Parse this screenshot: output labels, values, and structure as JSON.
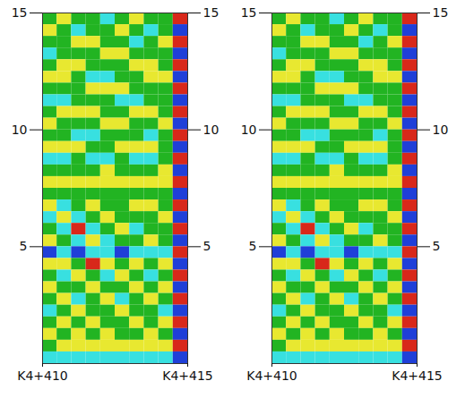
{
  "chart_data": [
    {
      "type": "heatmap",
      "xlim": [
        410,
        415
      ],
      "xticks": [
        {
          "value": 410,
          "label": "K4+410"
        },
        {
          "value": 415,
          "label": "K4+415"
        }
      ],
      "ylim": [
        0,
        15
      ],
      "yticks": [
        5,
        10,
        15
      ],
      "zlim": [
        -2,
        2
      ],
      "tick_labels": true,
      "x": [
        410.25,
        410.75,
        411.25,
        411.75,
        412.25,
        412.75,
        413.25,
        413.75,
        414.25,
        414.75
      ],
      "y": [
        14.75,
        14.25,
        13.75,
        13.25,
        12.75,
        12.25,
        11.75,
        11.25,
        10.75,
        10.25,
        9.75,
        9.25,
        8.75,
        8.25,
        7.75,
        7.25,
        6.75,
        6.25,
        5.75,
        5.25,
        4.75,
        4.25,
        3.75,
        3.25,
        2.75,
        2.25,
        1.75,
        1.25,
        0.75,
        0.25
      ],
      "values": [
        [
          0,
          1,
          0,
          0,
          -1,
          0,
          1,
          0,
          0,
          2
        ],
        [
          1,
          0,
          -1,
          0,
          0,
          1,
          0,
          -1,
          0,
          -2
        ],
        [
          0,
          0,
          1,
          1,
          0,
          0,
          -1,
          0,
          1,
          2
        ],
        [
          -1,
          0,
          0,
          0,
          1,
          1,
          0,
          0,
          0,
          -2
        ],
        [
          0,
          1,
          1,
          0,
          0,
          0,
          1,
          1,
          0,
          2
        ],
        [
          1,
          1,
          0,
          -1,
          -1,
          0,
          0,
          1,
          1,
          -2
        ],
        [
          0,
          0,
          0,
          1,
          1,
          1,
          0,
          0,
          0,
          2
        ],
        [
          -1,
          -1,
          0,
          0,
          0,
          -1,
          -1,
          0,
          0,
          -2
        ],
        [
          0,
          1,
          1,
          1,
          0,
          0,
          1,
          1,
          0,
          2
        ],
        [
          1,
          0,
          0,
          0,
          1,
          1,
          0,
          0,
          1,
          -2
        ],
        [
          0,
          0,
          -1,
          -1,
          0,
          0,
          0,
          -1,
          0,
          2
        ],
        [
          1,
          1,
          1,
          0,
          0,
          1,
          1,
          1,
          0,
          -2
        ],
        [
          -1,
          -1,
          0,
          -1,
          -1,
          0,
          -1,
          -1,
          0,
          2
        ],
        [
          0,
          0,
          0,
          0,
          1,
          0,
          0,
          0,
          1,
          -2
        ],
        [
          1,
          1,
          1,
          1,
          1,
          1,
          1,
          1,
          1,
          2
        ],
        [
          0,
          0,
          0,
          0,
          0,
          0,
          0,
          0,
          0,
          -2
        ],
        [
          1,
          -1,
          0,
          1,
          0,
          0,
          1,
          1,
          0,
          2
        ],
        [
          -1,
          1,
          -1,
          0,
          1,
          0,
          0,
          0,
          1,
          -2
        ],
        [
          0,
          -1,
          2,
          -1,
          0,
          1,
          -1,
          0,
          0,
          2
        ],
        [
          1,
          0,
          -1,
          1,
          -1,
          0,
          0,
          1,
          0,
          -2
        ],
        [
          -2,
          -1,
          -2,
          -1,
          -1,
          -2,
          -1,
          -1,
          -1,
          2
        ],
        [
          1,
          1,
          0,
          2,
          1,
          0,
          1,
          0,
          1,
          -2
        ],
        [
          0,
          -1,
          1,
          0,
          -1,
          1,
          0,
          -1,
          0,
          2
        ],
        [
          1,
          0,
          0,
          1,
          0,
          0,
          1,
          0,
          1,
          -2
        ],
        [
          0,
          1,
          -1,
          0,
          1,
          -1,
          0,
          1,
          0,
          2
        ],
        [
          -1,
          0,
          1,
          0,
          0,
          1,
          0,
          0,
          -1,
          -2
        ],
        [
          0,
          1,
          0,
          1,
          0,
          0,
          1,
          0,
          1,
          2
        ],
        [
          1,
          0,
          1,
          0,
          1,
          0,
          0,
          1,
          0,
          -2
        ],
        [
          0,
          1,
          1,
          1,
          1,
          1,
          1,
          1,
          1,
          2
        ],
        [
          -1,
          -1,
          -1,
          -1,
          -1,
          -1,
          -1,
          -1,
          -1,
          -2
        ]
      ]
    },
    {
      "type": "heatmap",
      "xlim": [
        410,
        415
      ],
      "xticks": [
        {
          "value": 410,
          "label": "K4+410"
        },
        {
          "value": 415,
          "label": "K4+415"
        }
      ],
      "ylim": [
        0,
        15
      ],
      "yticks": [
        5,
        10,
        15
      ],
      "zlim": [
        -2,
        2
      ],
      "tick_labels": true,
      "x": [
        410.25,
        410.75,
        411.25,
        411.75,
        412.25,
        412.75,
        413.25,
        413.75,
        414.25,
        414.75
      ],
      "y": [
        14.75,
        14.25,
        13.75,
        13.25,
        12.75,
        12.25,
        11.75,
        11.25,
        10.75,
        10.25,
        9.75,
        9.25,
        8.75,
        8.25,
        7.75,
        7.25,
        6.75,
        6.25,
        5.75,
        5.25,
        4.75,
        4.25,
        3.75,
        3.25,
        2.75,
        2.25,
        1.75,
        1.25,
        0.75,
        0.25
      ],
      "values": [
        [
          0,
          1,
          0,
          0,
          -1,
          0,
          1,
          0,
          0,
          2
        ],
        [
          1,
          0,
          -1,
          0,
          0,
          1,
          0,
          -1,
          0,
          -2
        ],
        [
          0,
          0,
          1,
          1,
          0,
          0,
          -1,
          0,
          1,
          2
        ],
        [
          -1,
          0,
          0,
          0,
          1,
          1,
          0,
          0,
          0,
          -2
        ],
        [
          0,
          1,
          1,
          0,
          0,
          0,
          1,
          1,
          0,
          2
        ],
        [
          1,
          1,
          0,
          -1,
          -1,
          0,
          0,
          1,
          1,
          -2
        ],
        [
          0,
          0,
          0,
          1,
          1,
          1,
          0,
          0,
          0,
          2
        ],
        [
          -1,
          -1,
          0,
          0,
          0,
          -1,
          -1,
          0,
          0,
          -2
        ],
        [
          0,
          1,
          1,
          1,
          0,
          0,
          1,
          1,
          0,
          2
        ],
        [
          1,
          0,
          0,
          0,
          1,
          1,
          0,
          0,
          1,
          -2
        ],
        [
          0,
          0,
          -1,
          -1,
          0,
          0,
          0,
          -1,
          0,
          2
        ],
        [
          1,
          1,
          1,
          0,
          0,
          1,
          1,
          1,
          0,
          -2
        ],
        [
          -1,
          -1,
          0,
          -1,
          -1,
          0,
          -1,
          -1,
          0,
          2
        ],
        [
          0,
          0,
          0,
          0,
          1,
          0,
          0,
          0,
          1,
          -2
        ],
        [
          1,
          1,
          1,
          1,
          1,
          1,
          1,
          1,
          1,
          2
        ],
        [
          0,
          0,
          0,
          0,
          0,
          0,
          0,
          0,
          0,
          -2
        ],
        [
          1,
          -1,
          0,
          1,
          0,
          0,
          1,
          1,
          0,
          2
        ],
        [
          -1,
          1,
          -1,
          0,
          1,
          0,
          0,
          0,
          1,
          -2
        ],
        [
          0,
          -1,
          2,
          -1,
          0,
          1,
          -1,
          0,
          0,
          2
        ],
        [
          1,
          0,
          -1,
          1,
          -1,
          0,
          0,
          1,
          0,
          -2
        ],
        [
          -2,
          -1,
          -2,
          -1,
          -1,
          -2,
          -1,
          -1,
          -1,
          2
        ],
        [
          1,
          1,
          0,
          2,
          1,
          0,
          1,
          0,
          1,
          -2
        ],
        [
          0,
          -1,
          1,
          0,
          -1,
          1,
          0,
          -1,
          0,
          2
        ],
        [
          1,
          0,
          0,
          1,
          0,
          0,
          1,
          0,
          1,
          -2
        ],
        [
          0,
          1,
          -1,
          0,
          1,
          -1,
          0,
          1,
          0,
          2
        ],
        [
          -1,
          0,
          1,
          0,
          0,
          1,
          0,
          0,
          -1,
          -2
        ],
        [
          0,
          1,
          0,
          1,
          0,
          0,
          1,
          0,
          1,
          2
        ],
        [
          1,
          0,
          1,
          0,
          1,
          0,
          0,
          1,
          0,
          -2
        ],
        [
          0,
          1,
          1,
          1,
          1,
          1,
          1,
          1,
          1,
          2
        ],
        [
          -1,
          -1,
          -1,
          -1,
          -1,
          -1,
          -1,
          -1,
          -1,
          -2
        ]
      ]
    }
  ]
}
